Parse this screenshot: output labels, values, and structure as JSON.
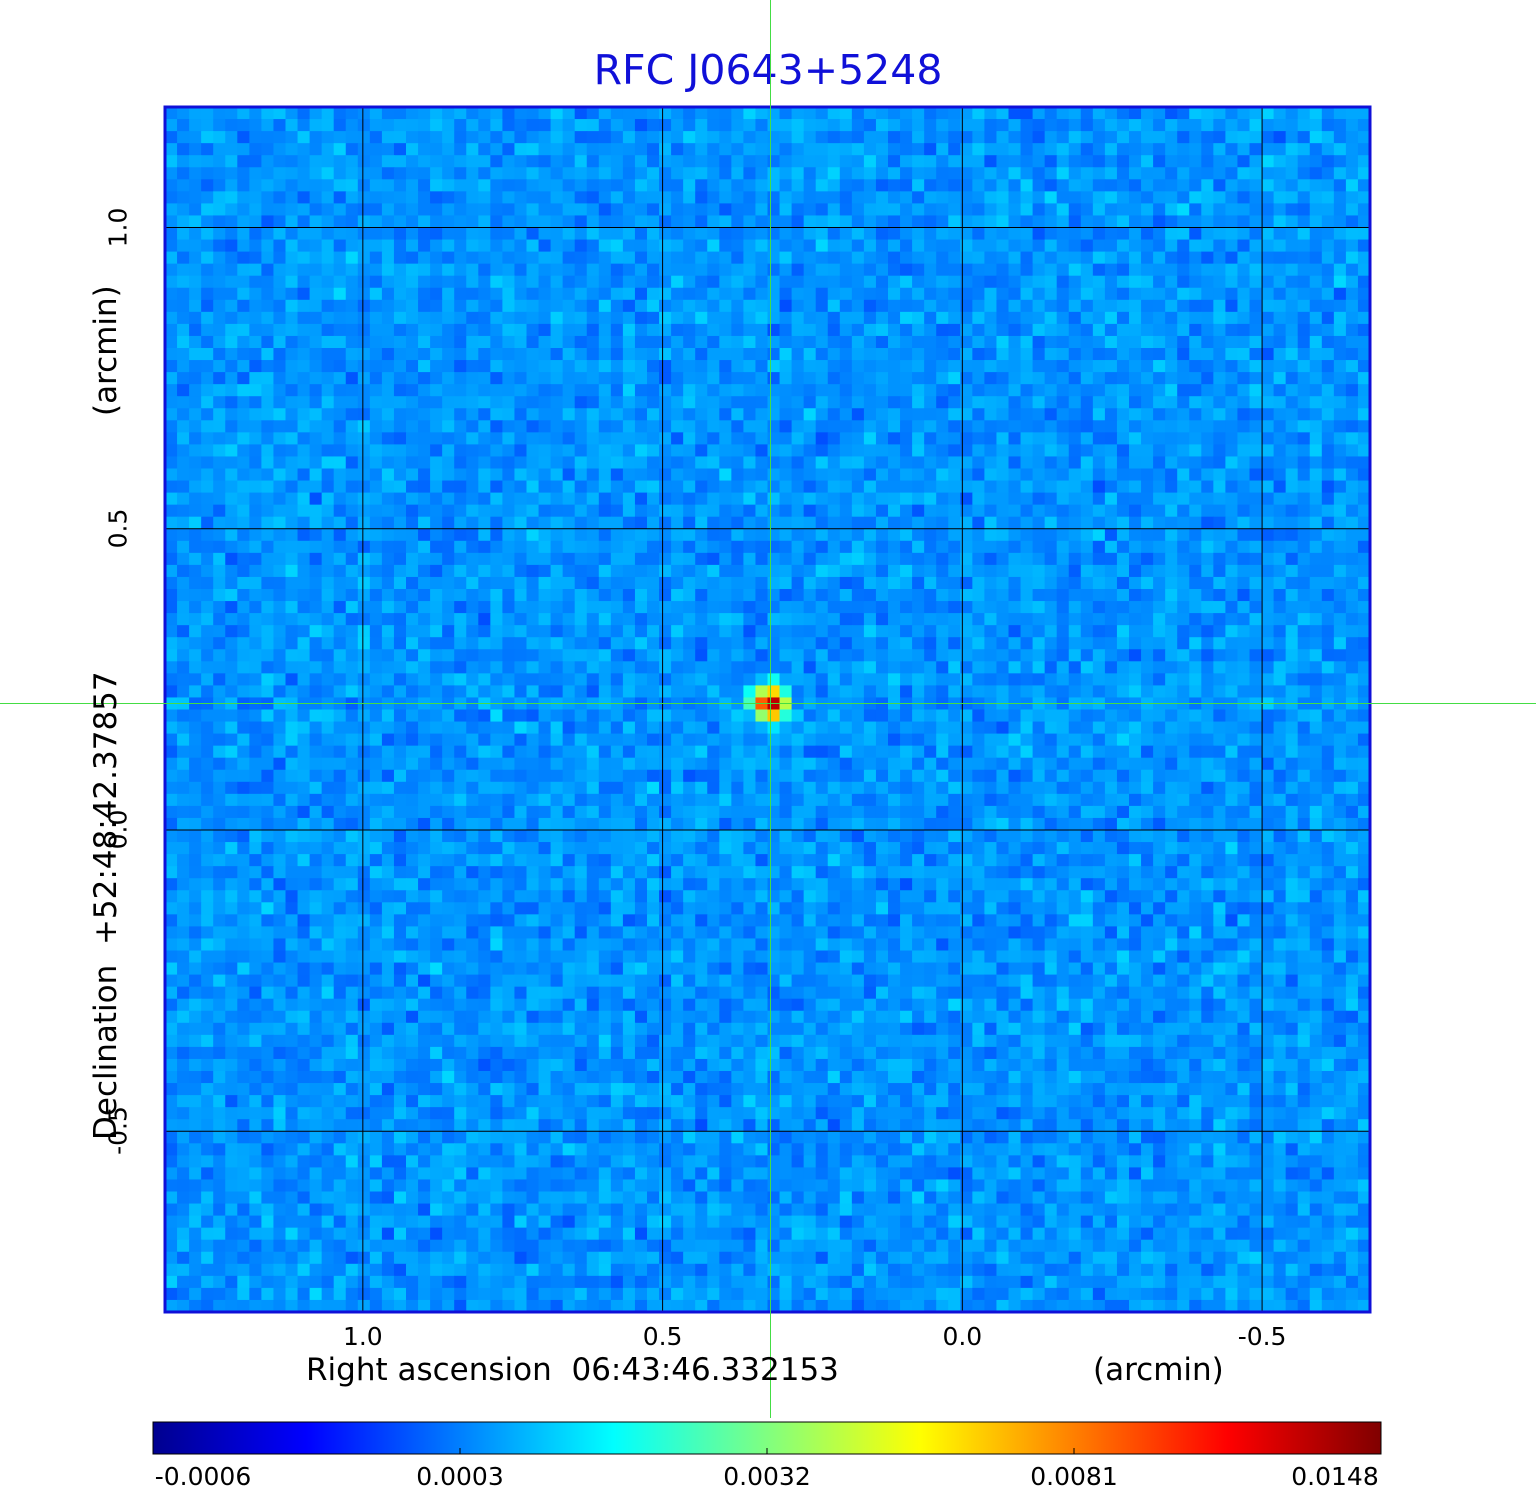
{
  "chart_data": {
    "type": "heatmap",
    "title": "RFC J0643+5248",
    "xlabel": "Right ascension  06:43:46.332153",
    "xlabel_unit": "(arcmin)",
    "ylabel": "Declination  +52:48:42.37857",
    "ylabel_unit": "(arcmin)",
    "x_ticks": [
      1.0,
      0.5,
      0.0,
      -0.5
    ],
    "x_tick_labels": [
      "1.0",
      "0.5",
      "0.0",
      "-0.5"
    ],
    "y_ticks": [
      1.0,
      0.5,
      0.0,
      -0.5
    ],
    "y_tick_labels": [
      "1.0",
      "0.5",
      "0.0",
      "-0.5"
    ],
    "xlim": [
      1.33,
      -0.68
    ],
    "ylim": [
      -0.8,
      1.2
    ],
    "grid": true,
    "crosshair": {
      "x": 0.32,
      "y": 0.21,
      "color": "#44dd44"
    },
    "source_peak": {
      "x": 0.32,
      "y": 0.21,
      "value": 0.0148
    },
    "colorscale": "jet",
    "colorbar": {
      "ticks": [
        -0.0006,
        0.0003,
        0.0032,
        0.0081,
        0.0148
      ],
      "tick_labels": [
        "-0.0006",
        "0.0003",
        "0.0032",
        "0.0081",
        "0.0148"
      ]
    },
    "colors": {
      "frame": "#1010d8",
      "grid": "#000000",
      "title": "#1010d8"
    }
  }
}
